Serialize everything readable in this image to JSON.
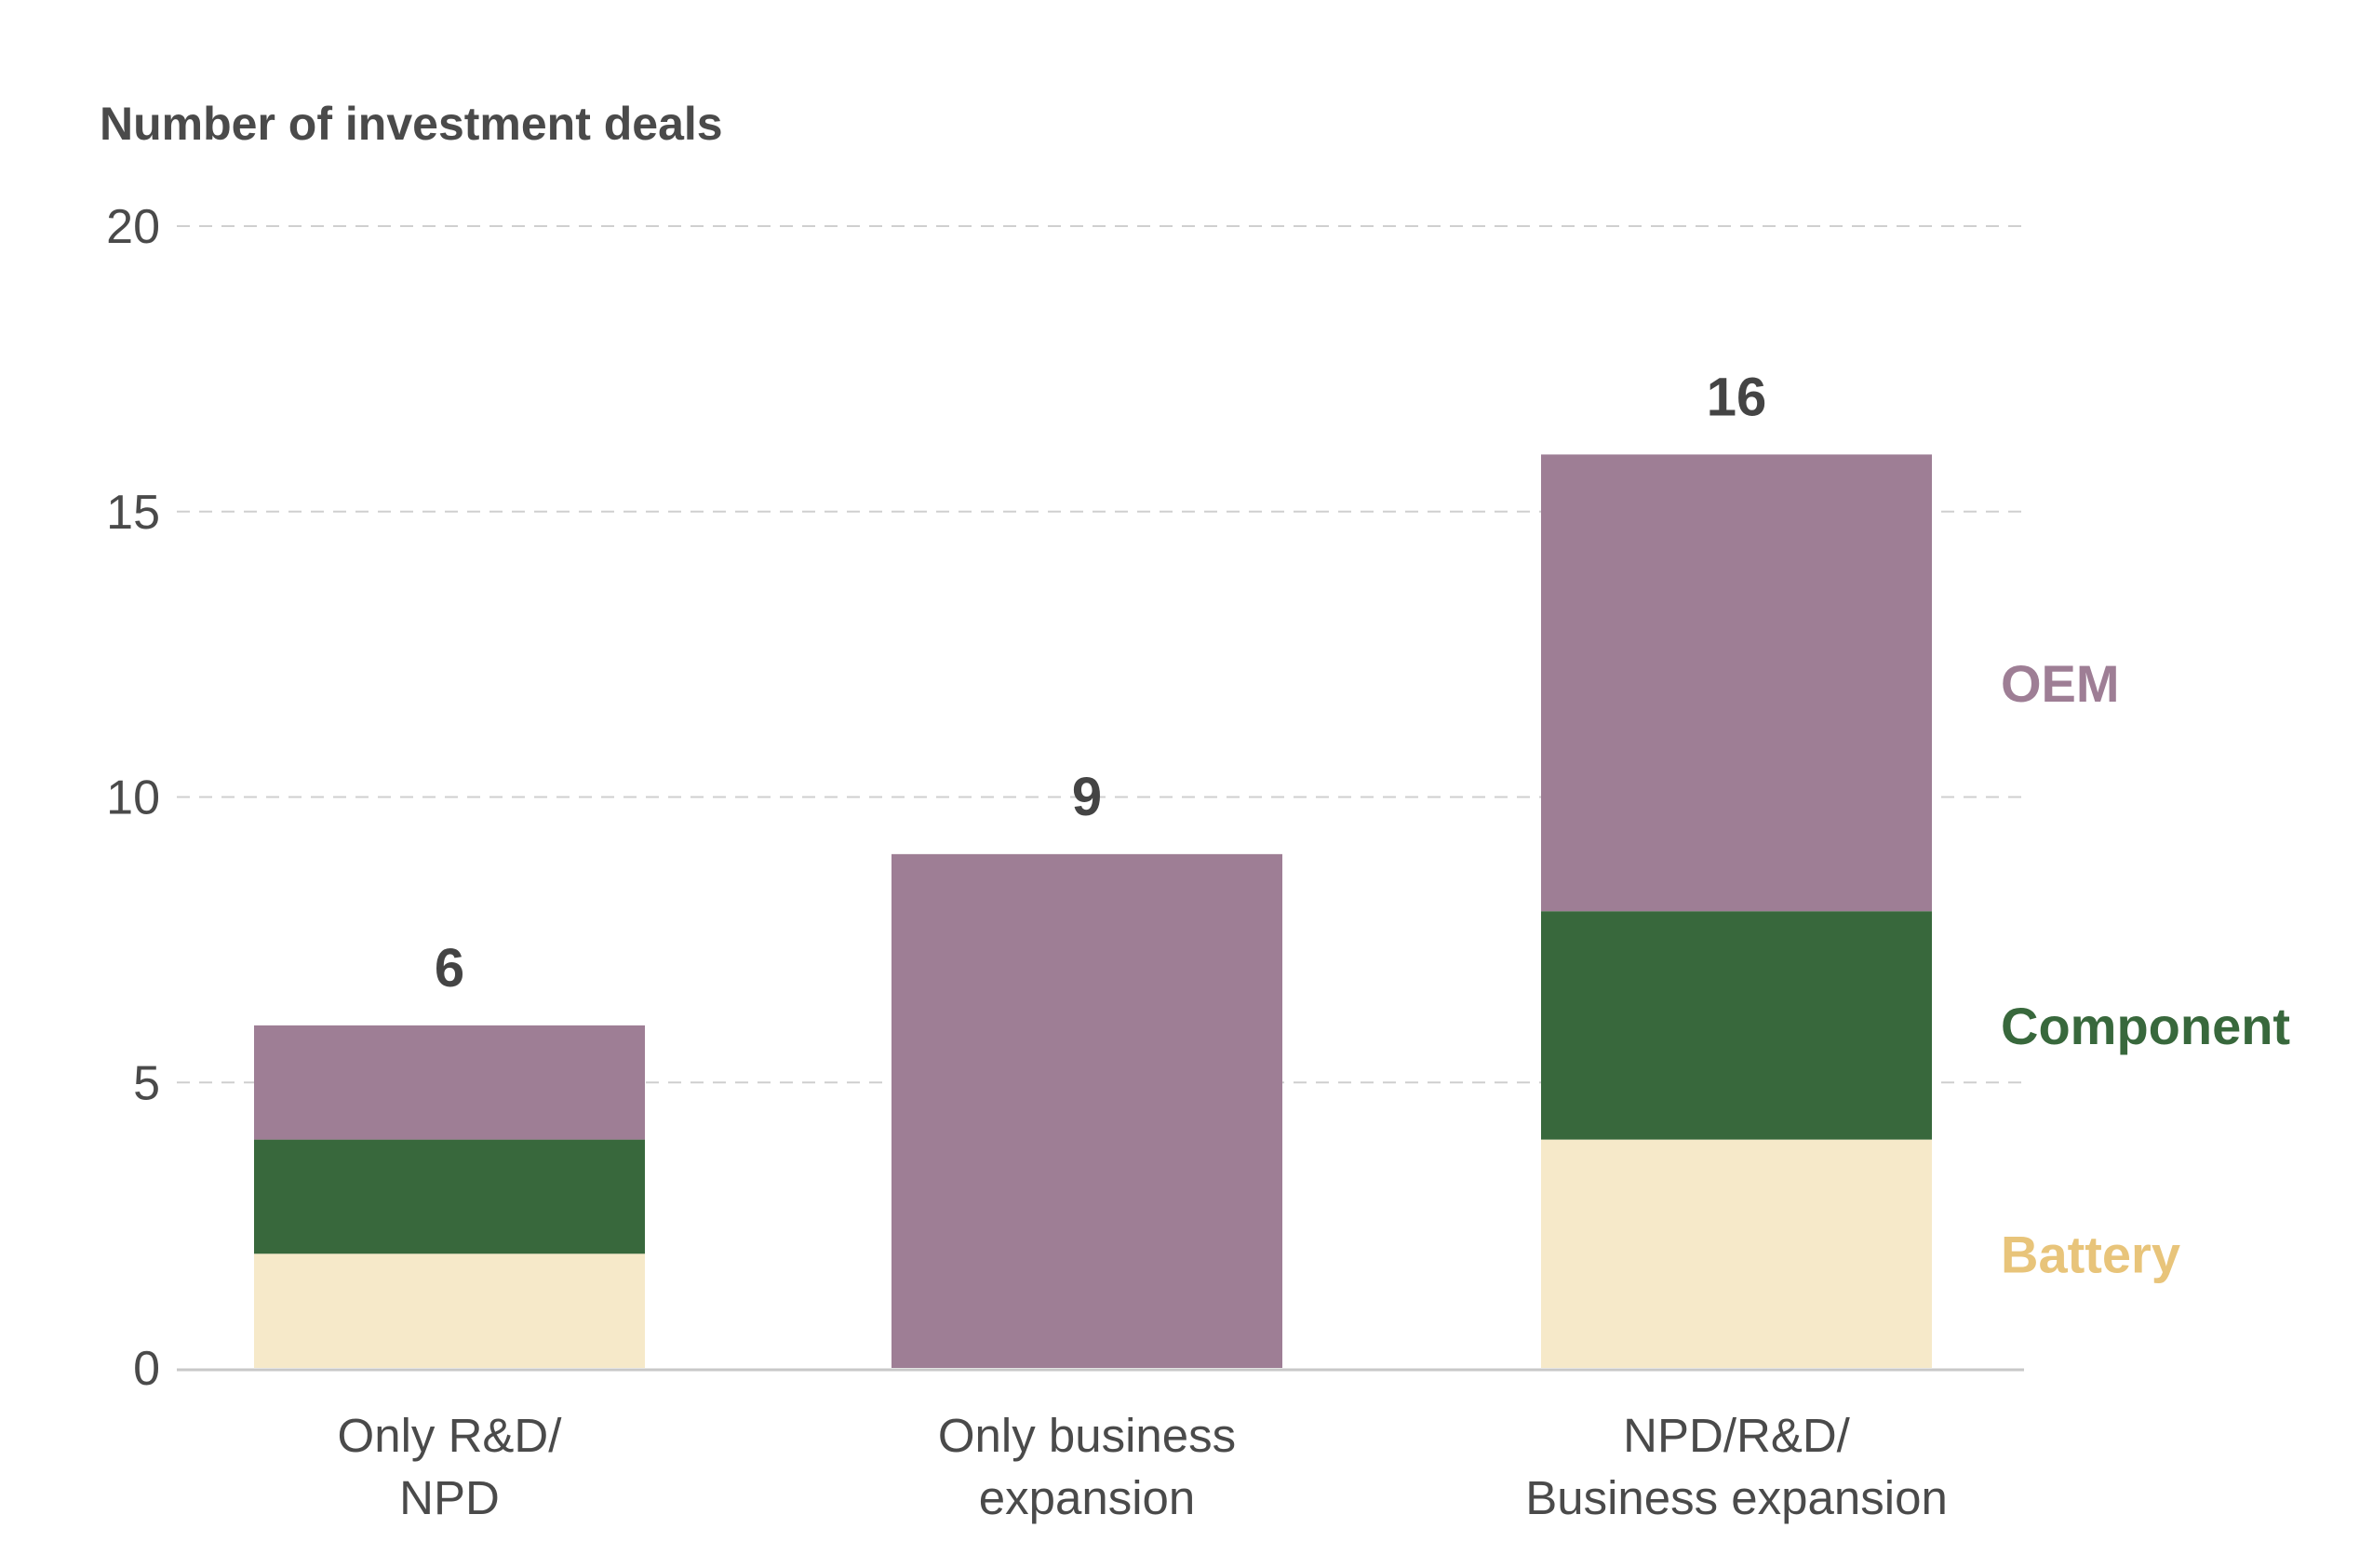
{
  "chart_data": {
    "type": "bar",
    "stacked": true,
    "title": "",
    "ylabel": "Number of investment deals",
    "xlabel": "",
    "ylim": [
      0,
      20
    ],
    "yticks": [
      0,
      5,
      10,
      15,
      20
    ],
    "grid": true,
    "categories": [
      [
        "Only R&D/",
        "NPD"
      ],
      [
        "Only business",
        "expansion"
      ],
      [
        "NPD/R&D/",
        "Business expansion"
      ]
    ],
    "totals": [
      6,
      9,
      16
    ],
    "series": [
      {
        "name": "Battery",
        "values": [
          2,
          0,
          4
        ],
        "color": "#f6e9c9",
        "label_color": "#e8c47a"
      },
      {
        "name": "Component",
        "values": [
          2,
          0,
          4
        ],
        "color": "#38683c",
        "label_color": "#38683c"
      },
      {
        "name": "OEM",
        "values": [
          2,
          9,
          8
        ],
        "color": "#9e7e95",
        "label_color": "#9e7e95"
      }
    ],
    "legend_placement": "right, beside last bar"
  }
}
